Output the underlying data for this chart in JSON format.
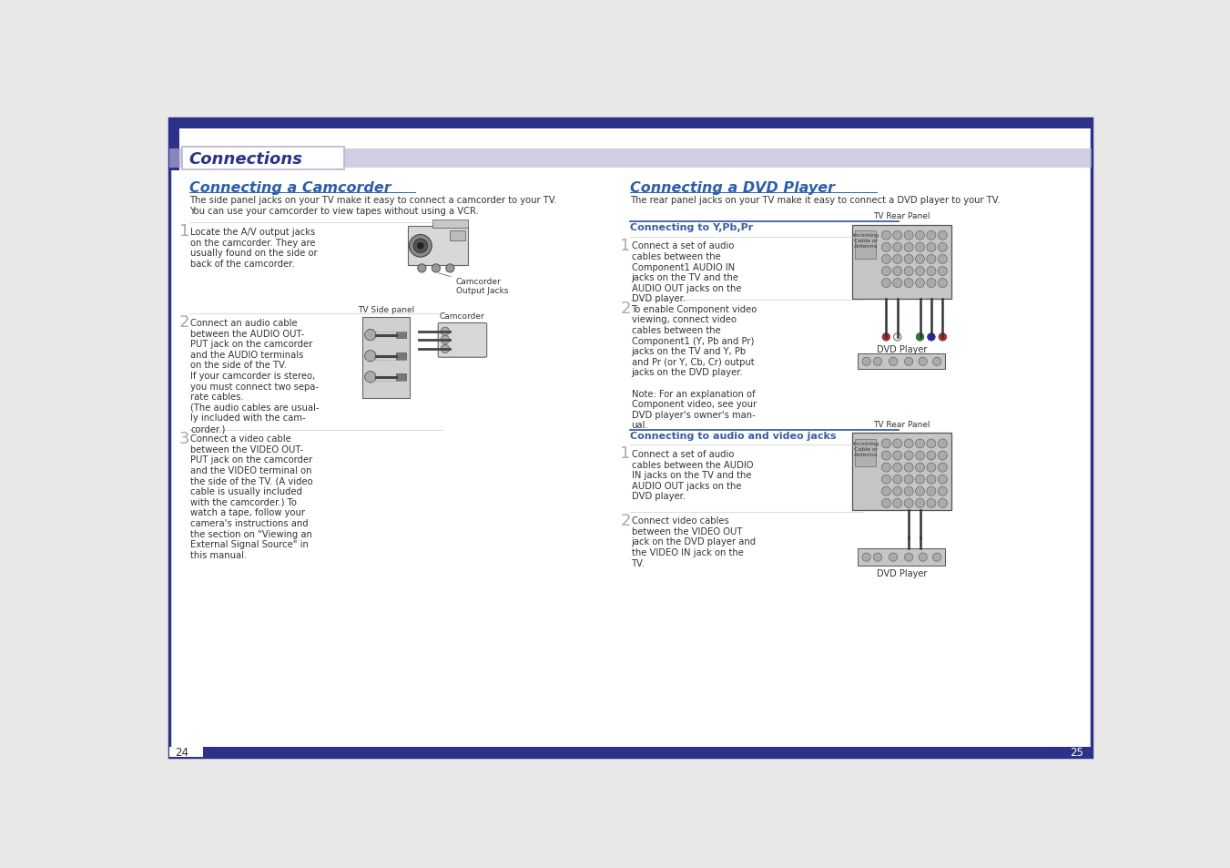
{
  "bg_color": "#e8e8e8",
  "page_bg": "#ffffff",
  "header_bar_color": "#2d318a",
  "header_bar_height": 14,
  "header_section_color": "#2d318a",
  "header_light_color": "#b8b4d4",
  "header_title": "Connections",
  "header_title_color": "#2d318a",
  "left_section_title": "Connecting a Camcorder",
  "right_section_title": "Connecting a DVD Player",
  "section_title_color": "#2d5faa",
  "left_subtitle": "The side panel jacks on your TV make it easy to connect a camcorder to your TV.\nYou can use your camcorder to view tapes without using a VCR.",
  "right_subtitle": "The rear panel jacks on your TV make it easy to connect a DVD player to your TV.",
  "sub_heading1_color": "#3a5fa0",
  "sub_heading1_underline": "#3a5fa0",
  "connecting_ypbpr": "Connecting to Y,Pb,Pr",
  "connecting_audio_video": "Connecting to audio and video jacks",
  "step1_left": "Locate the A/V output jacks\non the camcorder. They are\nusually found on the side or\nback of the camcorder.",
  "step2_left": "Connect an audio cable\nbetween the AUDIO OUT-\nPUT jack on the camcorder\nand the AUDIO terminals\non the side of the TV.\nIf your camcorder is stereo,\nyou must connect two sepa-\nrate cables.\n(The audio cables are usual-\nly included with the cam-\ncorder.)",
  "step3_left": "Connect a video cable\nbetween the VIDEO OUT-\nPUT jack on the camcorder\nand the VIDEO terminal on\nthe side of the TV. (A video\ncable is usually included\nwith the camcorder.) To\nwatch a tape, follow your\ncamera's instructions and\nthe section on \"Viewing an\nExternal Signal Source\" in\nthis manual.",
  "step1_right_ypbpr": "Connect a set of audio\ncables between the\nComponent1 AUDIO IN\njacks on the TV and the\nAUDIO OUT jacks on the\nDVD player.",
  "step2_right_ypbpr": "To enable Component video\nviewing, connect video\ncables between the\nComponent1 (Y, Pb and Pr)\njacks on the TV and Y, Pb\nand Pr (or Y, Cb, Cr) output\njacks on the DVD player.\n\nNote: For an explanation of\nComponent video, see your\nDVD player's owner's man-\nual.",
  "step1_right_av": "Connect a set of audio\ncables between the AUDIO\nIN jacks on the TV and the\nAUDIO OUT jacks on the\nDVD player.",
  "step2_right_av": "Connect video cables\nbetween the VIDEO OUT\njack on the DVD player and\nthe VIDEO IN jack on the\nTV.",
  "page_left": "24",
  "page_right": "25",
  "step_color": "#aaaaaa",
  "text_color": "#333333",
  "label_camcorder_output": "Camcorder\nOutput Jacks",
  "label_tv_side": "TV Side panel",
  "label_camcorder": "Camcorder",
  "label_dvd_player": "DVD Player",
  "label_tv_rear": "TV Rear Panel"
}
